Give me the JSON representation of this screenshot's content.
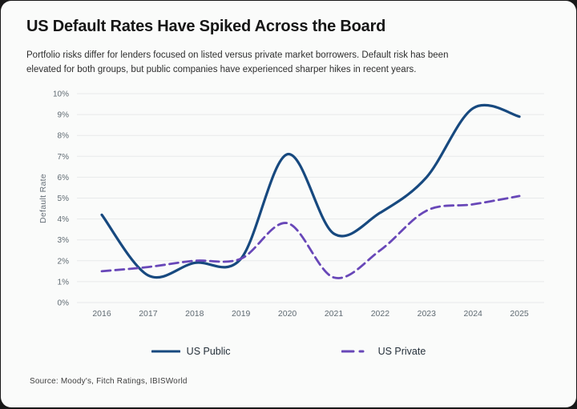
{
  "card": {
    "background": "#fafbfa",
    "outer_background": "#181818"
  },
  "header": {
    "title": "US Default Rates Have Spiked Across the Board",
    "subtitle_line1": "Portfolio risks differ for lenders focused on listed versus private market borrowers. Default risk has been",
    "subtitle_line2": "elevated for both groups, but public companies have experienced sharper hikes in recent years."
  },
  "chart_data": {
    "type": "line",
    "title": "US Default Rates Have Spiked Across the Board",
    "xlabel": "",
    "ylabel": "Default Rate",
    "categories": [
      "2016",
      "2017",
      "2018",
      "2019",
      "2020",
      "2021",
      "2022",
      "2023",
      "2024",
      "2025"
    ],
    "series": [
      {
        "name": "US Public",
        "style": "solid",
        "color": "#17497f",
        "values": [
          4.2,
          1.3,
          1.9,
          2.1,
          7.1,
          3.3,
          4.3,
          6.0,
          9.3,
          8.9
        ]
      },
      {
        "name": "US Private",
        "style": "dashed",
        "color": "#6847b8",
        "values": [
          1.5,
          1.7,
          2.0,
          2.1,
          3.8,
          1.2,
          2.5,
          4.4,
          4.7,
          5.1
        ]
      }
    ],
    "ylim": [
      0,
      10
    ],
    "y_ticks": [
      "0%",
      "1%",
      "2%",
      "3%",
      "4%",
      "5%",
      "6%",
      "7%",
      "8%",
      "9%",
      "10%"
    ],
    "grid": "horizontal",
    "gridline_color": "#e8eaea",
    "tick_label_color": "#5f6a72",
    "legend_position": "bottom",
    "curve": "smooth-spline"
  },
  "legend": {
    "items": [
      {
        "label": "US Public",
        "color": "#17497f",
        "dash": "none"
      },
      {
        "label": "US Private",
        "color": "#6847b8",
        "dash": "long-short"
      }
    ]
  },
  "footer": {
    "source": "Source: Moody's, Fitch Ratings, IBISWorld"
  }
}
